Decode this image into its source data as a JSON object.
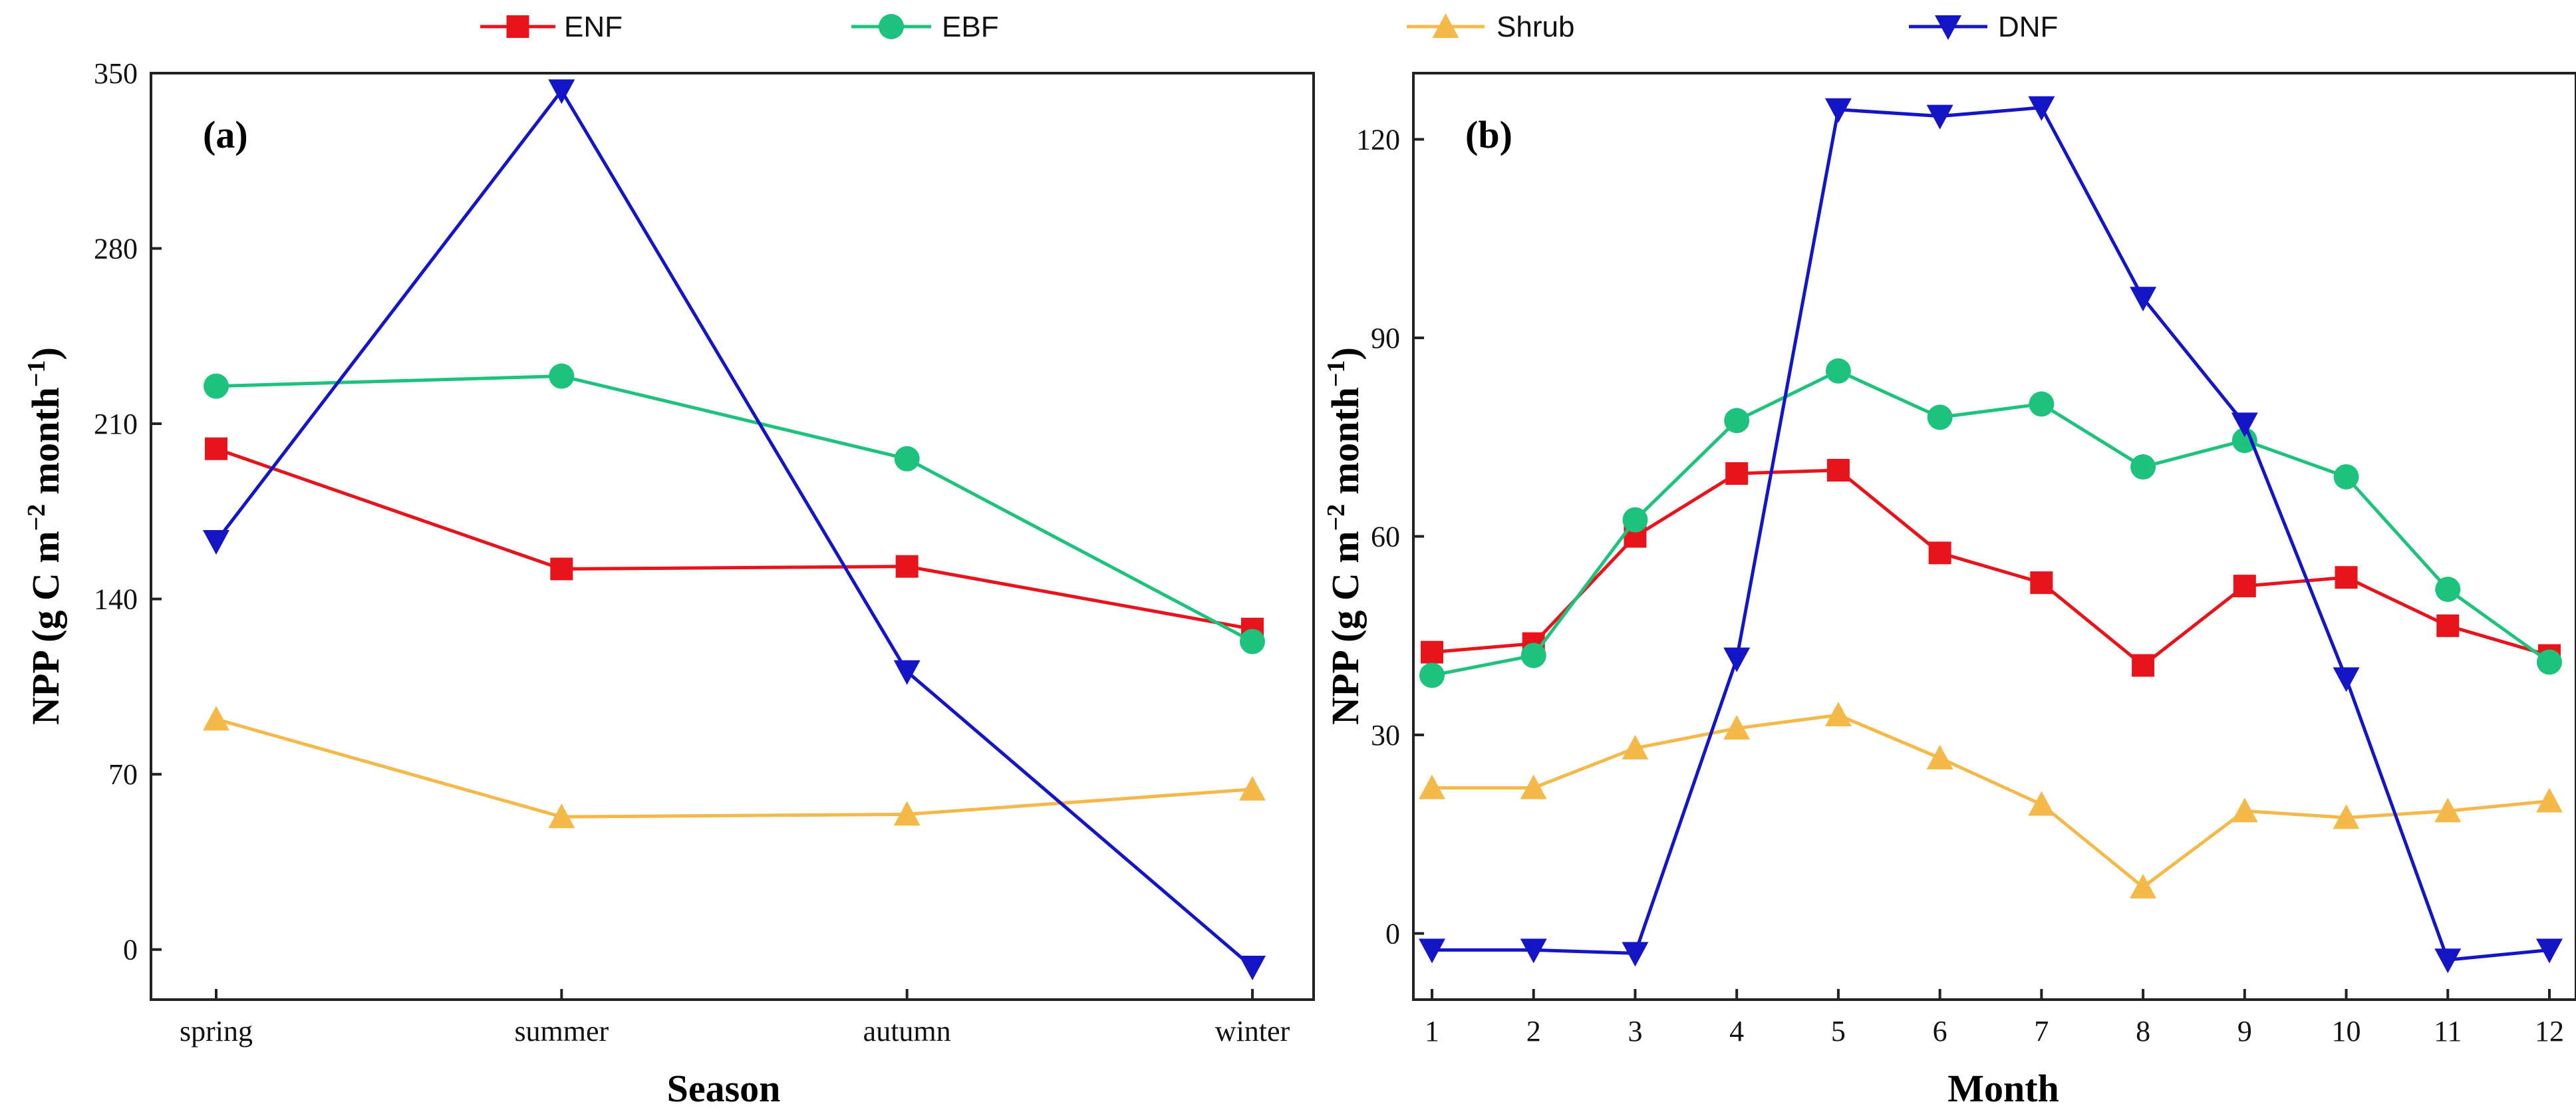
{
  "colors": {
    "ENF": "#e8141b",
    "EBF": "#1dc27c",
    "Shrub": "#f5b94a",
    "DNF": "#1515c8"
  },
  "legend": [
    {
      "key": "ENF",
      "label": "ENF",
      "marker": "square"
    },
    {
      "key": "EBF",
      "label": "EBF",
      "marker": "circle"
    },
    {
      "key": "Shrub",
      "label": "Shrub",
      "marker": "triangle-up"
    },
    {
      "key": "DNF",
      "label": "DNF",
      "marker": "triangle-down"
    }
  ],
  "chart_data": [
    {
      "type": "line",
      "panel_label": "(a)",
      "xlabel": "Season",
      "ylabel_main": "NPP (g C m",
      "ylabel_sup": "−2",
      "ylabel_mid": " month",
      "ylabel_sup2": "−1",
      "ylabel_end": ")",
      "categories": [
        "spring",
        "summer",
        "autumn",
        "winter"
      ],
      "ylim": [
        -20,
        350
      ],
      "yticks": [
        0,
        70,
        140,
        210,
        280,
        350
      ],
      "series": [
        {
          "key": "ENF",
          "name": "ENF",
          "values": [
            200,
            152,
            153,
            128
          ]
        },
        {
          "key": "EBF",
          "name": "EBF",
          "values": [
            225,
            229,
            196,
            123
          ]
        },
        {
          "key": "Shrub",
          "name": "Shrub",
          "values": [
            92,
            53,
            54,
            64
          ]
        },
        {
          "key": "DNF",
          "name": "DNF",
          "values": [
            163,
            343,
            111,
            -7
          ]
        }
      ]
    },
    {
      "type": "line",
      "panel_label": "(b)",
      "xlabel": "Month",
      "ylabel_main": "NPP (g C m",
      "ylabel_sup": "−2",
      "ylabel_mid": " month",
      "ylabel_sup2": "−1",
      "ylabel_end": ")",
      "categories": [
        "1",
        "2",
        "3",
        "4",
        "5",
        "6",
        "7",
        "8",
        "9",
        "10",
        "11",
        "12"
      ],
      "ylim": [
        -10,
        130
      ],
      "yticks": [
        0,
        30,
        60,
        90,
        120
      ],
      "series": [
        {
          "key": "ENF",
          "name": "ENF",
          "values": [
            42.5,
            43.8,
            60,
            69.5,
            70,
            57.5,
            53,
            40.5,
            52.5,
            53.8,
            46.5,
            42
          ]
        },
        {
          "key": "EBF",
          "name": "EBF",
          "values": [
            39,
            42,
            62.5,
            77.5,
            85,
            78,
            80,
            70.5,
            74.5,
            69,
            52,
            41
          ]
        },
        {
          "key": "Shrub",
          "name": "Shrub",
          "values": [
            22,
            22,
            28,
            31,
            33,
            26.5,
            19.5,
            7,
            18.5,
            17.5,
            18.5,
            20
          ]
        },
        {
          "key": "DNF",
          "name": "DNF",
          "values": [
            -2.5,
            -2.5,
            -3,
            41.5,
            124.5,
            123.5,
            124.8,
            96,
            77,
            38.5,
            -4,
            -2.5
          ]
        }
      ]
    }
  ]
}
